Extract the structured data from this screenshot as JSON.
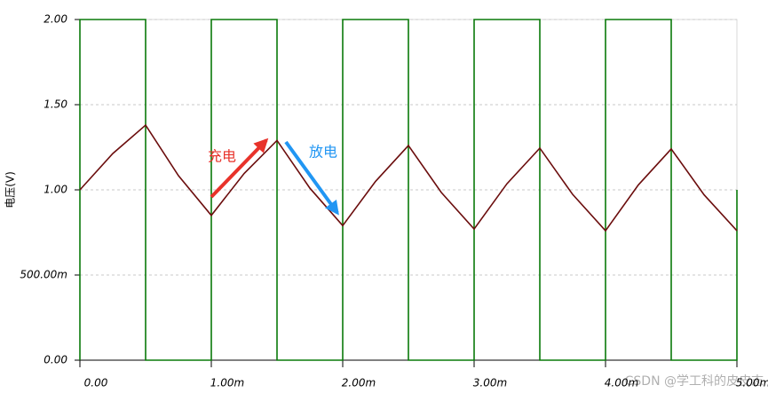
{
  "chart_data": {
    "type": "line",
    "ylabel": "电压(V)",
    "xlim": [
      0,
      0.005
    ],
    "ylim": [
      0,
      2
    ],
    "xticks": [
      {
        "value": 0,
        "label": "0.00"
      },
      {
        "value": 0.001,
        "label": "1.00m"
      },
      {
        "value": 0.002,
        "label": "2.00m"
      },
      {
        "value": 0.003,
        "label": "3.00m"
      },
      {
        "value": 0.004,
        "label": "4.00m"
      },
      {
        "value": 0.005,
        "label": "5.00m"
      }
    ],
    "yticks": [
      {
        "value": 0,
        "label": "0.00"
      },
      {
        "value": 0.5,
        "label": "500.00m"
      },
      {
        "value": 1,
        "label": "1.00"
      },
      {
        "value": 1.5,
        "label": "1.50"
      },
      {
        "value": 2,
        "label": "2.00"
      }
    ],
    "grid": true,
    "series": [
      {
        "color": "#0a7a0a",
        "x": [
          0,
          0,
          0.0005,
          0.0005,
          0.001,
          0.001,
          0.0015,
          0.0015,
          0.002,
          0.002,
          0.0025,
          0.0025,
          0.003,
          0.003,
          0.0035,
          0.0035,
          0.004,
          0.004,
          0.0045,
          0.0045,
          0.005,
          0.005
        ],
        "values": [
          0,
          2,
          2,
          0,
          0,
          2,
          2,
          0,
          0,
          2,
          2,
          0,
          0,
          2,
          2,
          0,
          0,
          2,
          2,
          0,
          0,
          1
        ]
      },
      {
        "color": "#6b0d0d",
        "x": [
          0,
          0.00025,
          0.0005,
          0.00075,
          0.001,
          0.00125,
          0.0015,
          0.00175,
          0.002,
          0.00225,
          0.0025,
          0.00275,
          0.003,
          0.00325,
          0.0035,
          0.00375,
          0.004,
          0.00425,
          0.0045,
          0.00475,
          0.005
        ],
        "values": [
          1.0,
          1.213,
          1.38,
          1.083,
          0.85,
          1.096,
          1.29,
          1.01,
          0.79,
          1.05,
          1.26,
          0.985,
          0.77,
          1.036,
          1.245,
          0.973,
          0.76,
          1.029,
          1.24,
          0.971,
          0.76
        ]
      }
    ],
    "annotations": [
      {
        "text": "充电",
        "color": "#e8322a"
      },
      {
        "text": "放电",
        "color": "#2196f3"
      }
    ],
    "watermark": "CSDN @学工科的皮皮志"
  }
}
